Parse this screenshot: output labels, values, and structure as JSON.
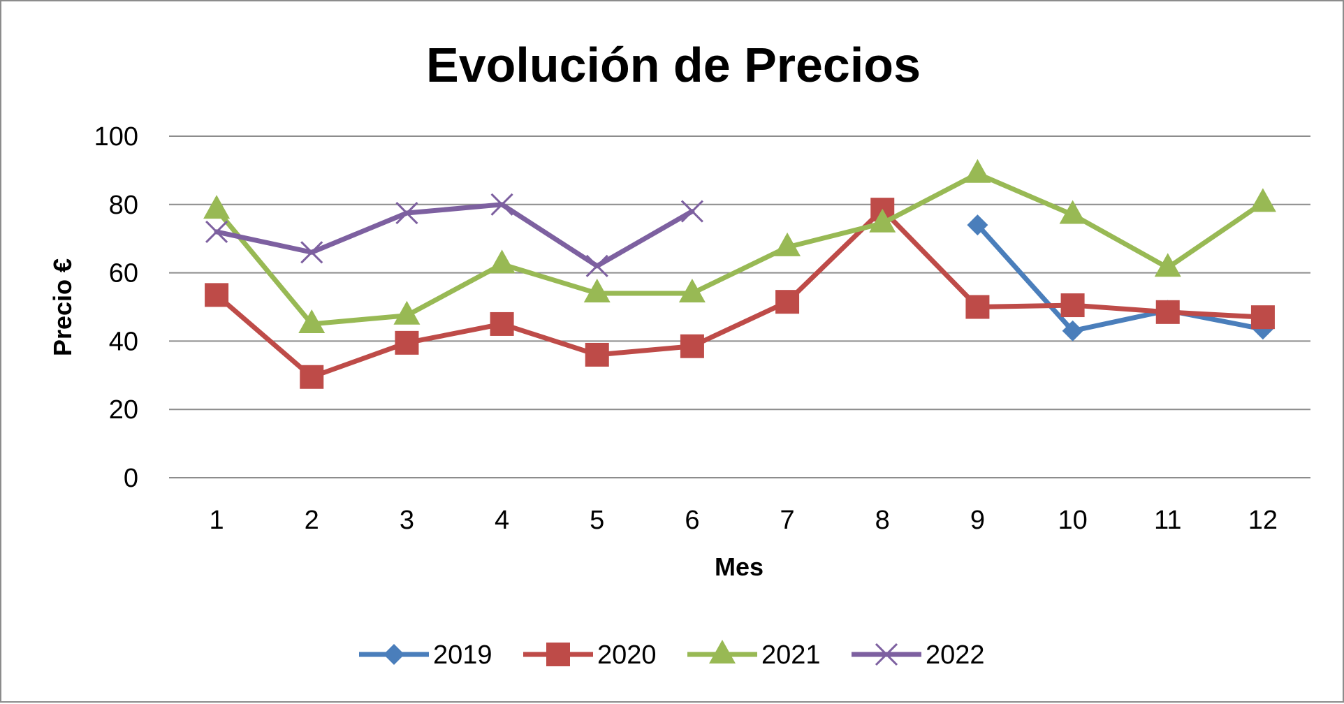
{
  "chart_data": {
    "type": "line",
    "title": "Evolución de Precios",
    "xlabel": "Mes",
    "ylabel": "Precio €",
    "categories": [
      "1",
      "2",
      "3",
      "4",
      "5",
      "6",
      "7",
      "8",
      "9",
      "10",
      "11",
      "12"
    ],
    "ylim": [
      0,
      100
    ],
    "yticks": [
      0,
      20,
      40,
      60,
      80,
      100
    ],
    "grid": true,
    "legend_position": "bottom",
    "series": [
      {
        "name": "2019",
        "color": "#4a7ebb",
        "marker": "diamond",
        "values": [
          null,
          null,
          null,
          null,
          null,
          null,
          null,
          null,
          74,
          43,
          49,
          43.5
        ]
      },
      {
        "name": "2020",
        "color": "#be4b48",
        "marker": "square",
        "values": [
          53.5,
          29.5,
          39.5,
          45,
          36,
          38.5,
          51.5,
          78.5,
          50,
          50.5,
          48.5,
          47
        ]
      },
      {
        "name": "2021",
        "color": "#98b954",
        "marker": "triangle",
        "values": [
          78.5,
          45,
          47.5,
          62.5,
          54,
          54,
          67.5,
          74.5,
          89,
          77,
          61.5,
          80.5
        ]
      },
      {
        "name": "2022",
        "color": "#7d60a0",
        "marker": "x",
        "values": [
          72,
          66,
          77.5,
          80,
          62,
          78,
          null,
          null,
          null,
          null,
          null,
          null
        ]
      }
    ]
  }
}
